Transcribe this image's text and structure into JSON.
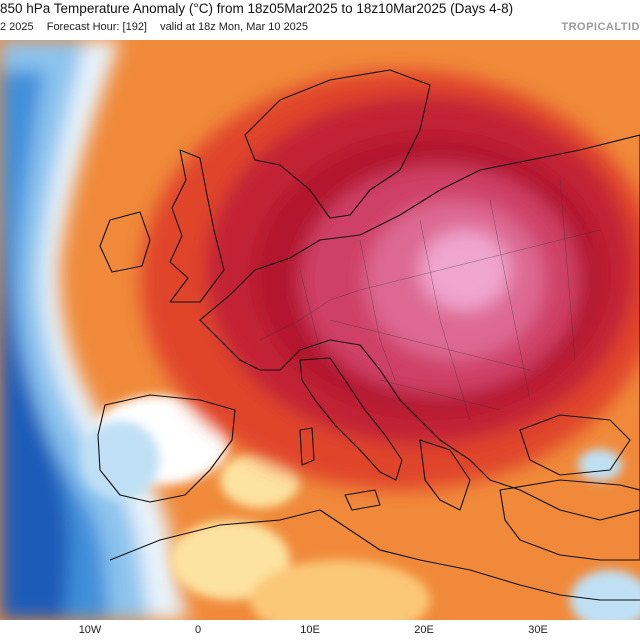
{
  "header": {
    "title": "850 hPa Temperature Anomaly (°C) from 18z05Mar2025 to 18z10Mar2025 (Days 4-8)",
    "init_fragment": "2 2025",
    "forecast_hour": "Forecast Hour: [192]",
    "valid": "valid at 18z Mon, Mar 10 2025",
    "brand": "TROPICALTID"
  },
  "axis": {
    "ticks": [
      "10W",
      "0",
      "10E",
      "20E",
      "30E"
    ]
  },
  "colors": {
    "cold_deep": "#1a5fc2",
    "cold": "#5aa6e6",
    "cool": "#bfe0f4",
    "neutral": "#ffffff",
    "warm_light": "#fde3a0",
    "warm": "#f6a04a",
    "hot": "#e0452a",
    "very_hot": "#b3172e",
    "extreme": "#d24a78",
    "peak": "#f0a6cf",
    "sea": "#2e7fd6"
  }
}
